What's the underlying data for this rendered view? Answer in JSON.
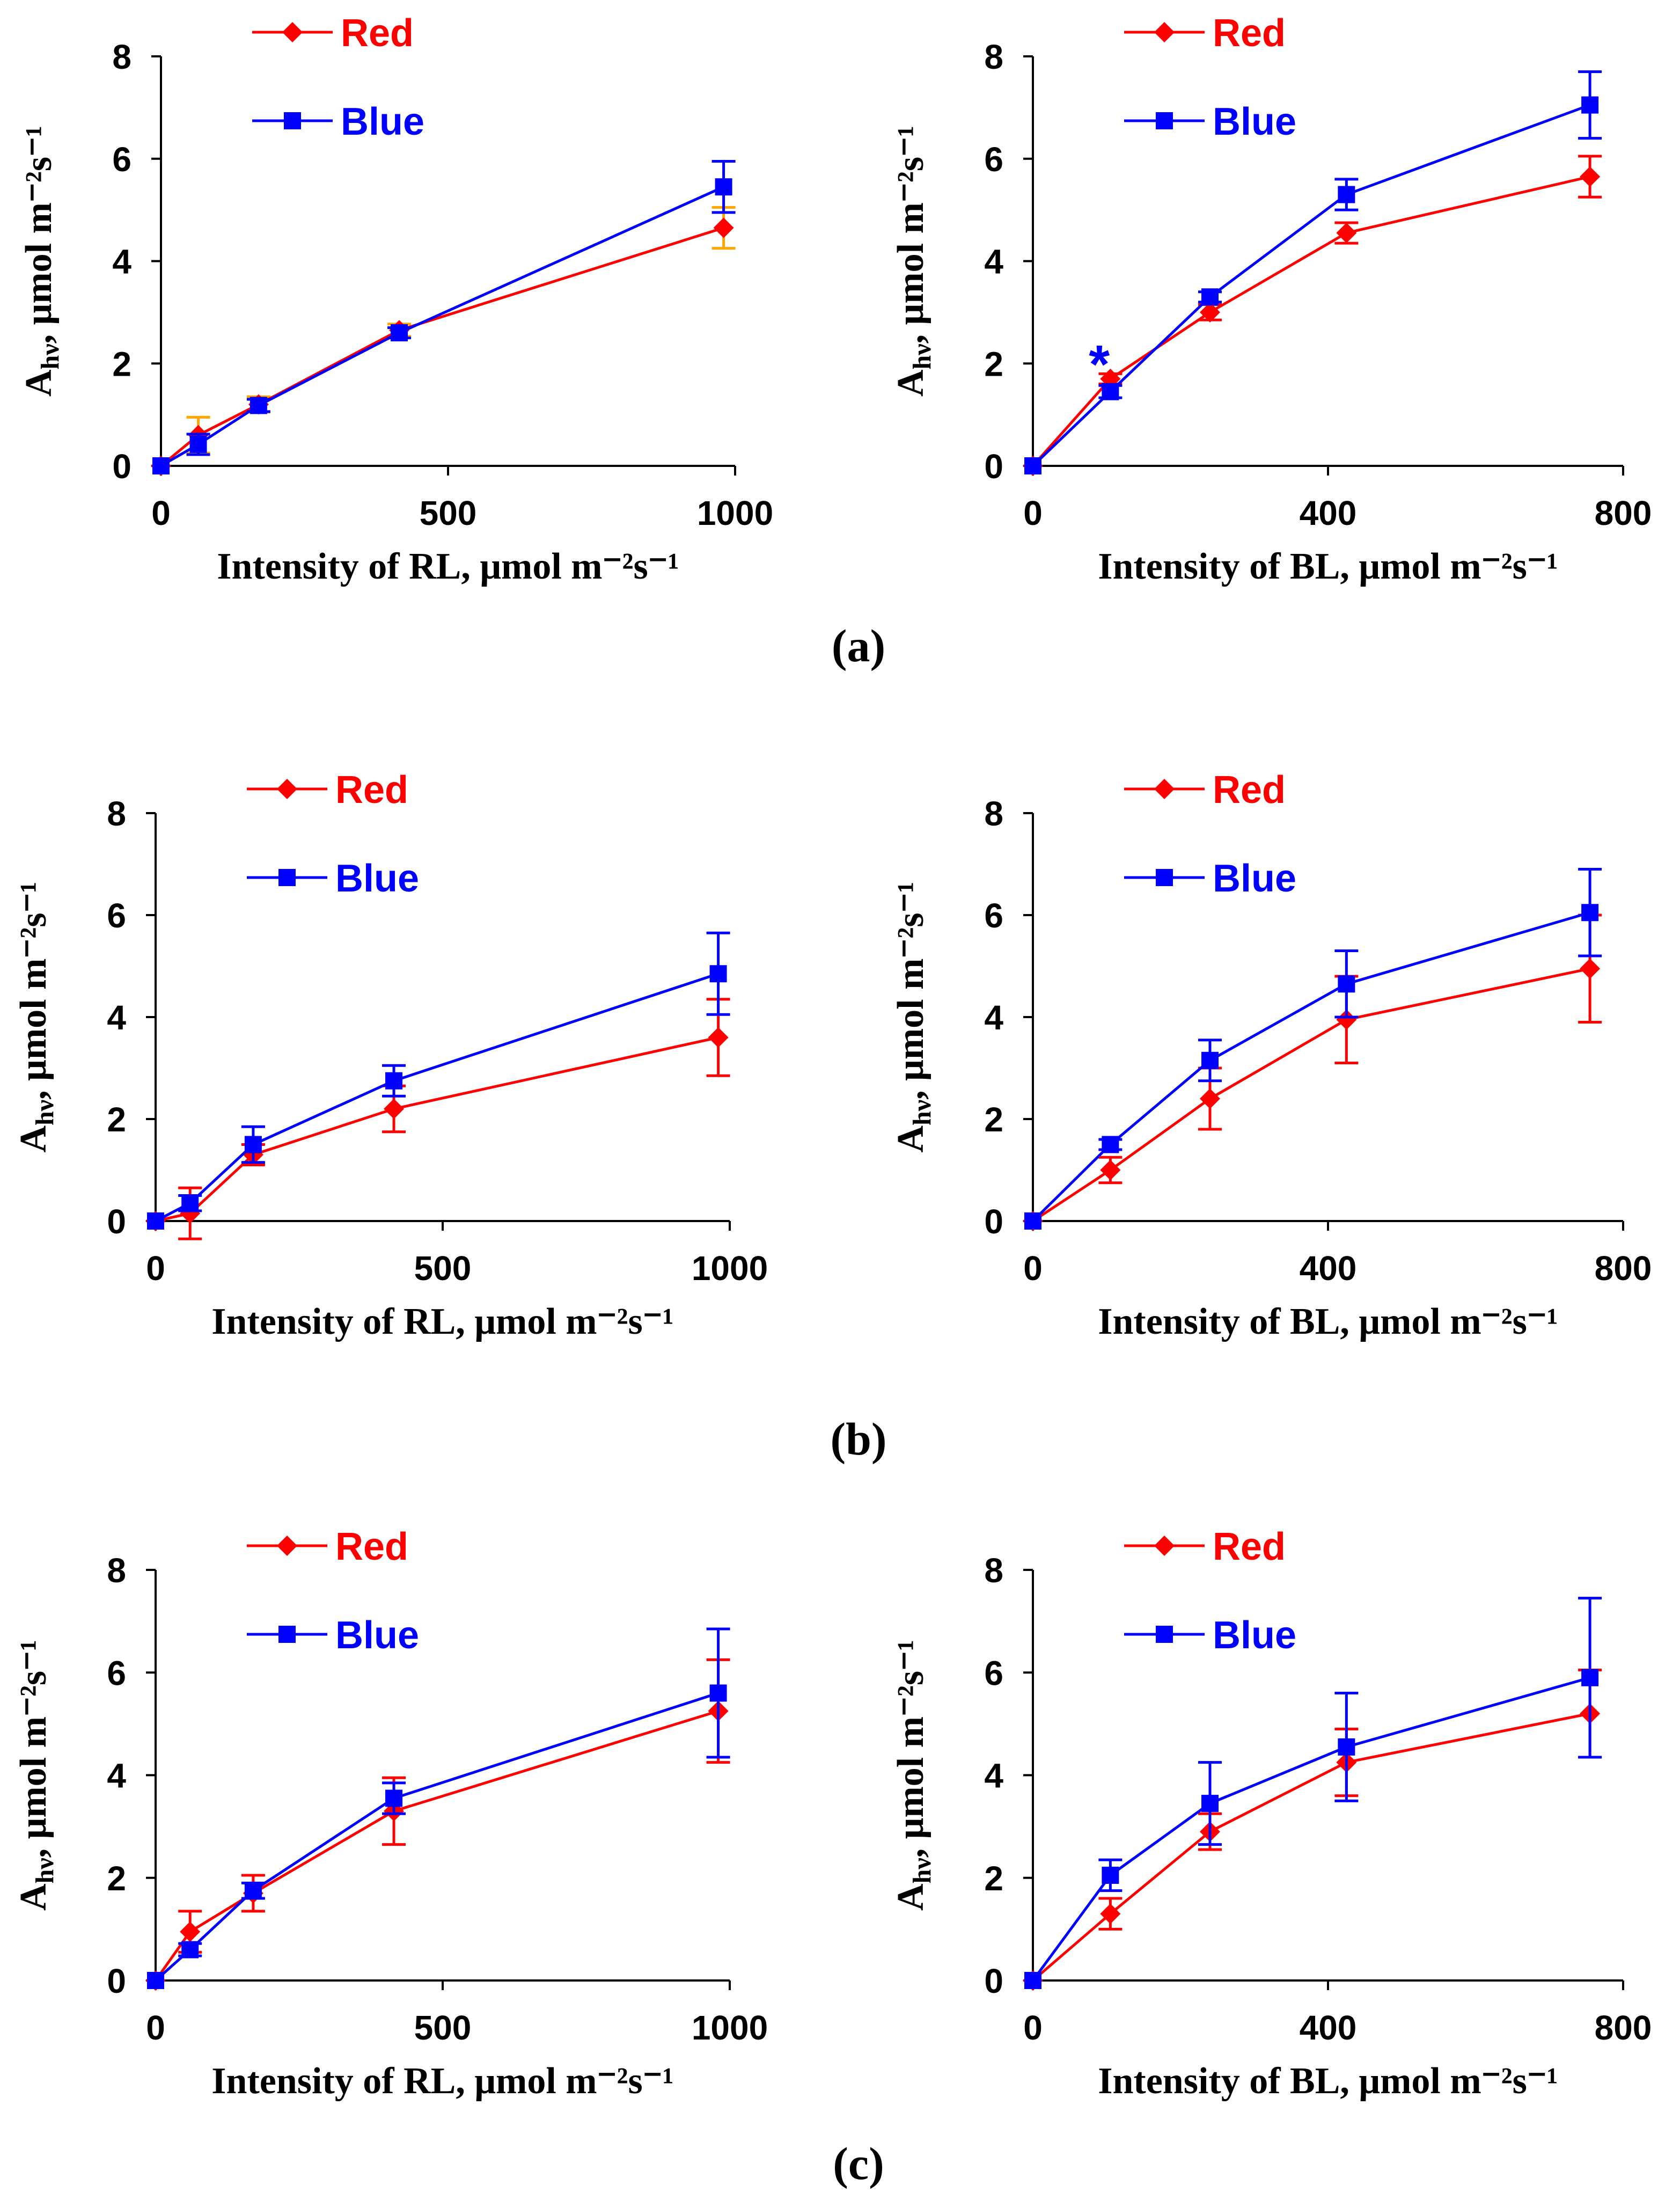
{
  "colors": {
    "red": "#ff0000",
    "blue": "#0000ff",
    "axis": "#000000"
  },
  "panel_labels": [
    "(a)",
    "(b)",
    "(c)"
  ],
  "chart_data": [
    {
      "type": "line",
      "panel": "(a)",
      "xlabel": "Intensity of RL, μmol m⁻²s⁻¹",
      "ylabel_main": "A",
      "ylabel_sub": "hν",
      "ylabel_rest": ", μmol m⁻²s⁻¹",
      "xlim": [
        0,
        1000
      ],
      "xticks": [
        "0",
        "500",
        "1000"
      ],
      "xtickvals": [
        0,
        500,
        1000
      ],
      "ylim": [
        0,
        8
      ],
      "yticks": [
        "0",
        "2",
        "4",
        "6",
        "8"
      ],
      "ytickvals": [
        0,
        2,
        4,
        6,
        8
      ],
      "x": [
        0,
        65,
        170,
        415,
        980
      ],
      "legend": [
        "Red",
        "Blue"
      ],
      "series": [
        {
          "name": "Red",
          "color": "#ff0000",
          "errcolor": "#ffa500",
          "values": [
            0,
            0.6,
            1.2,
            2.65,
            4.65
          ],
          "err": [
            0.05,
            0.35,
            0.15,
            0.12,
            0.4
          ]
        },
        {
          "name": "Blue",
          "color": "#0000ff",
          "values": [
            0,
            0.42,
            1.18,
            2.6,
            5.45
          ],
          "err": [
            0.05,
            0.2,
            0.12,
            0.1,
            0.5
          ]
        }
      ]
    },
    {
      "type": "line",
      "panel": "(a)",
      "xlabel": "Intensity of BL, μmol m⁻²s⁻¹",
      "ylabel_main": "A",
      "ylabel_sub": "hν",
      "ylabel_rest": ", μmol m⁻²s⁻¹",
      "xlim": [
        0,
        800
      ],
      "xticks": [
        "0",
        "400",
        "800"
      ],
      "xtickvals": [
        0,
        400,
        800
      ],
      "ylim": [
        0,
        8
      ],
      "yticks": [
        "0",
        "2",
        "4",
        "6",
        "8"
      ],
      "ytickvals": [
        0,
        2,
        4,
        6,
        8
      ],
      "x": [
        0,
        105,
        240,
        425,
        755
      ],
      "legend": [
        "Red",
        "Blue"
      ],
      "annotation": {
        "text": "*",
        "x": 90,
        "y": 2.15
      },
      "series": [
        {
          "name": "Red",
          "color": "#ff0000",
          "values": [
            0,
            1.7,
            3.0,
            4.55,
            5.65
          ],
          "err": [
            0.05,
            0.1,
            0.15,
            0.2,
            0.4
          ]
        },
        {
          "name": "Blue",
          "color": "#0000ff",
          "values": [
            0,
            1.45,
            3.3,
            5.3,
            7.05
          ],
          "err": [
            0.05,
            0.12,
            0.1,
            0.3,
            0.65
          ]
        }
      ]
    },
    {
      "type": "line",
      "panel": "(b)",
      "xlabel": "Intensity of RL, μmol m⁻²s⁻¹",
      "ylabel_main": "A",
      "ylabel_sub": "hν",
      "ylabel_rest": ", μmol m⁻²s⁻¹",
      "xlim": [
        0,
        1000
      ],
      "xticks": [
        "0",
        "500",
        "1000"
      ],
      "xtickvals": [
        0,
        500,
        1000
      ],
      "ylim": [
        0,
        8
      ],
      "yticks": [
        "0",
        "2",
        "4",
        "6",
        "8"
      ],
      "ytickvals": [
        0,
        2,
        4,
        6,
        8
      ],
      "x": [
        0,
        60,
        170,
        415,
        980
      ],
      "legend": [
        "Red",
        "Blue"
      ],
      "series": [
        {
          "name": "Red",
          "color": "#ff0000",
          "values": [
            0,
            0.15,
            1.3,
            2.2,
            3.6
          ],
          "err": [
            0.05,
            0.5,
            0.2,
            0.45,
            0.75
          ]
        },
        {
          "name": "Blue",
          "color": "#0000ff",
          "values": [
            0,
            0.35,
            1.5,
            2.75,
            4.85
          ],
          "err": [
            0.05,
            0.15,
            0.35,
            0.3,
            0.8
          ]
        }
      ]
    },
    {
      "type": "line",
      "panel": "(b)",
      "xlabel": "Intensity of BL, μmol m⁻²s⁻¹",
      "ylabel_main": "A",
      "ylabel_sub": "hν",
      "ylabel_rest": ", μmol m⁻²s⁻¹",
      "xlim": [
        0,
        800
      ],
      "xticks": [
        "0",
        "400",
        "800"
      ],
      "xtickvals": [
        0,
        400,
        800
      ],
      "ylim": [
        0,
        8
      ],
      "yticks": [
        "0",
        "2",
        "4",
        "6",
        "8"
      ],
      "ytickvals": [
        0,
        2,
        4,
        6,
        8
      ],
      "x": [
        0,
        105,
        240,
        425,
        755
      ],
      "legend": [
        "Red",
        "Blue"
      ],
      "series": [
        {
          "name": "Red",
          "color": "#ff0000",
          "values": [
            0,
            1.0,
            2.4,
            3.95,
            4.95
          ],
          "err": [
            0.05,
            0.25,
            0.6,
            0.85,
            1.05
          ]
        },
        {
          "name": "Blue",
          "color": "#0000ff",
          "values": [
            0,
            1.5,
            3.15,
            4.65,
            6.05
          ],
          "err": [
            0.05,
            0.1,
            0.4,
            0.65,
            0.85
          ]
        }
      ]
    },
    {
      "type": "line",
      "panel": "(c)",
      "xlabel": "Intensity of RL, μmol m⁻²s⁻¹",
      "ylabel_main": "A",
      "ylabel_sub": "hν",
      "ylabel_rest": ", μmol m⁻²s⁻¹",
      "xlim": [
        0,
        1000
      ],
      "xticks": [
        "0",
        "500",
        "1000"
      ],
      "xtickvals": [
        0,
        500,
        1000
      ],
      "ylim": [
        0,
        8
      ],
      "yticks": [
        "0",
        "2",
        "4",
        "6",
        "8"
      ],
      "ytickvals": [
        0,
        2,
        4,
        6,
        8
      ],
      "x": [
        0,
        60,
        170,
        415,
        980
      ],
      "legend": [
        "Red",
        "Blue"
      ],
      "series": [
        {
          "name": "Red",
          "color": "#ff0000",
          "values": [
            0,
            0.95,
            1.7,
            3.3,
            5.25
          ],
          "err": [
            0.05,
            0.4,
            0.35,
            0.65,
            1.0
          ]
        },
        {
          "name": "Blue",
          "color": "#0000ff",
          "values": [
            0,
            0.6,
            1.75,
            3.55,
            5.6
          ],
          "err": [
            0.05,
            0.12,
            0.15,
            0.3,
            1.25
          ]
        }
      ]
    },
    {
      "type": "line",
      "panel": "(c)",
      "xlabel": "Intensity of BL, μmol m⁻²s⁻¹",
      "ylabel_main": "A",
      "ylabel_sub": "hν",
      "ylabel_rest": ", μmol m⁻²s⁻¹",
      "xlim": [
        0,
        800
      ],
      "xticks": [
        "0",
        "400",
        "800"
      ],
      "xtickvals": [
        0,
        400,
        800
      ],
      "ylim": [
        0,
        8
      ],
      "yticks": [
        "0",
        "2",
        "4",
        "6",
        "8"
      ],
      "ytickvals": [
        0,
        2,
        4,
        6,
        8
      ],
      "x": [
        0,
        105,
        240,
        425,
        755
      ],
      "legend": [
        "Red",
        "Blue"
      ],
      "series": [
        {
          "name": "Red",
          "color": "#ff0000",
          "values": [
            0,
            1.3,
            2.9,
            4.25,
            5.2
          ],
          "err": [
            0.05,
            0.3,
            0.35,
            0.65,
            0.85
          ]
        },
        {
          "name": "Blue",
          "color": "#0000ff",
          "values": [
            0,
            2.05,
            3.45,
            4.55,
            5.9
          ],
          "err": [
            0.05,
            0.3,
            0.8,
            1.05,
            1.55
          ]
        }
      ]
    }
  ]
}
